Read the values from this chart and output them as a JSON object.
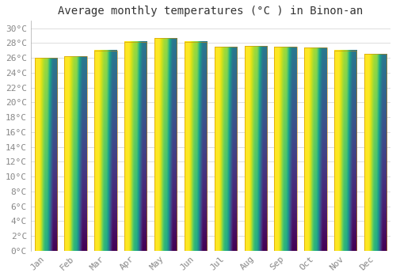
{
  "title": "Average monthly temperatures (°C ) in Binon-an",
  "months": [
    "Jan",
    "Feb",
    "Mar",
    "Apr",
    "May",
    "Jun",
    "Jul",
    "Aug",
    "Sep",
    "Oct",
    "Nov",
    "Dec"
  ],
  "values": [
    26.0,
    26.2,
    27.0,
    28.2,
    28.7,
    28.2,
    27.5,
    27.6,
    27.5,
    27.4,
    27.0,
    26.5
  ],
  "bar_color_top": "#FFD966",
  "bar_color_bottom": "#FFA000",
  "bar_edge_color": "#CC8800",
  "ylim": [
    0,
    31
  ],
  "ytick_step": 2,
  "background_color": "#ffffff",
  "grid_color": "#d8d8d8",
  "title_fontsize": 10,
  "tick_fontsize": 8,
  "font_family": "monospace"
}
